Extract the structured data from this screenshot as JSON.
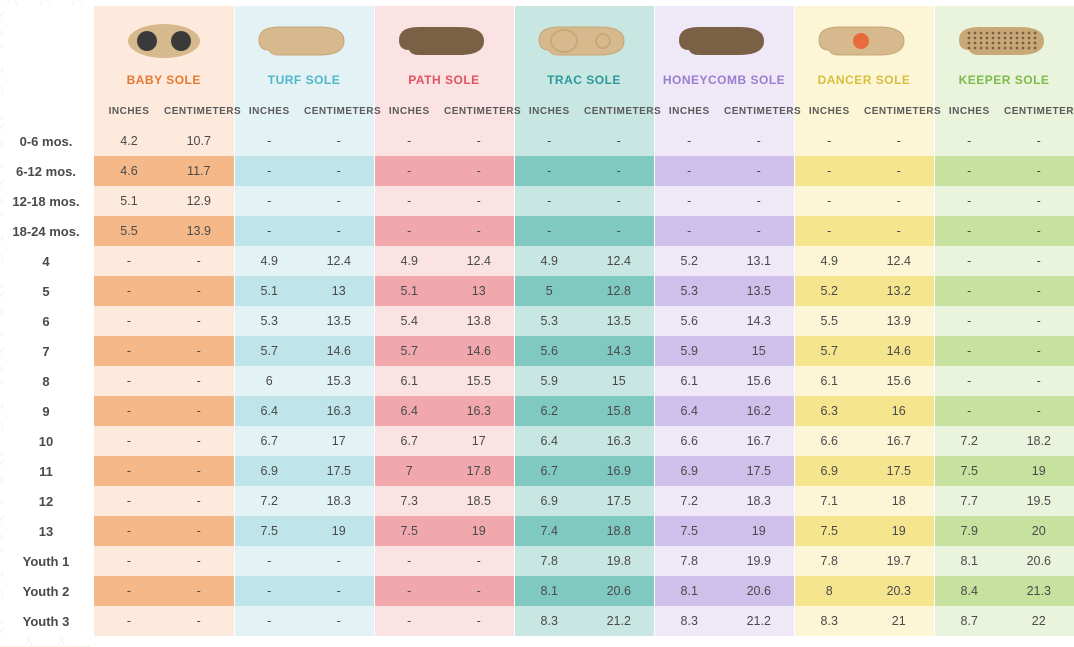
{
  "soles": [
    {
      "label": "BABY SOLE",
      "label_color": "#e67931",
      "light": "#fdeadd",
      "dark": "#f5b989",
      "icon": "baby"
    },
    {
      "label": "TURF SOLE",
      "label_color": "#4fb7c9",
      "light": "#e3f2f4",
      "dark": "#bfe4e9",
      "icon": "turf"
    },
    {
      "label": "PATH SOLE",
      "label_color": "#e15360",
      "light": "#fbe3e4",
      "dark": "#f1a8ad",
      "icon": "path"
    },
    {
      "label": "TRAC SOLE",
      "label_color": "#2c9a9a",
      "light": "#c8e6e2",
      "dark": "#7fc9c0",
      "icon": "trac"
    },
    {
      "label": "HONEYCOMB SOLE",
      "label_color": "#9a7ed1",
      "light": "#eee8f7",
      "dark": "#cfc0eb",
      "icon": "honeycomb"
    },
    {
      "label": "DANCER SOLE",
      "label_color": "#d8be3e",
      "light": "#fdf6d6",
      "dark": "#f5e58f",
      "icon": "dancer"
    },
    {
      "label": "KEEPER SOLE",
      "label_color": "#7dbb4a",
      "light": "#eaf3dc",
      "dark": "#c7e29f",
      "icon": "keeper"
    }
  ],
  "sub_headers": [
    "INCHES",
    "CENTIMETERS"
  ],
  "rows": [
    {
      "label": "0-6 mos.",
      "v": [
        [
          "4.2",
          "10.7"
        ],
        [
          "-",
          "-"
        ],
        [
          "-",
          "-"
        ],
        [
          "-",
          "-"
        ],
        [
          "-",
          "-"
        ],
        [
          "-",
          "-"
        ],
        [
          "-",
          "-"
        ]
      ]
    },
    {
      "label": "6-12 mos.",
      "v": [
        [
          "4.6",
          "11.7"
        ],
        [
          "-",
          "-"
        ],
        [
          "-",
          "-"
        ],
        [
          "-",
          "-"
        ],
        [
          "-",
          "-"
        ],
        [
          "-",
          "-"
        ],
        [
          "-",
          "-"
        ]
      ]
    },
    {
      "label": "12-18 mos.",
      "v": [
        [
          "5.1",
          "12.9"
        ],
        [
          "-",
          "-"
        ],
        [
          "-",
          "-"
        ],
        [
          "-",
          "-"
        ],
        [
          "-",
          "-"
        ],
        [
          "-",
          "-"
        ],
        [
          "-",
          "-"
        ]
      ]
    },
    {
      "label": "18-24 mos.",
      "v": [
        [
          "5.5",
          "13.9"
        ],
        [
          "-",
          "-"
        ],
        [
          "-",
          "-"
        ],
        [
          "-",
          "-"
        ],
        [
          "-",
          "-"
        ],
        [
          "-",
          "-"
        ],
        [
          "-",
          "-"
        ]
      ]
    },
    {
      "label": "4",
      "v": [
        [
          "-",
          "-"
        ],
        [
          "4.9",
          "12.4"
        ],
        [
          "4.9",
          "12.4"
        ],
        [
          "4.9",
          "12.4"
        ],
        [
          "5.2",
          "13.1"
        ],
        [
          "4.9",
          "12.4"
        ],
        [
          "-",
          "-"
        ]
      ]
    },
    {
      "label": "5",
      "v": [
        [
          "-",
          "-"
        ],
        [
          "5.1",
          "13"
        ],
        [
          "5.1",
          "13"
        ],
        [
          "5",
          "12.8"
        ],
        [
          "5.3",
          "13.5"
        ],
        [
          "5.2",
          "13.2"
        ],
        [
          "-",
          "-"
        ]
      ]
    },
    {
      "label": "6",
      "v": [
        [
          "-",
          "-"
        ],
        [
          "5.3",
          "13.5"
        ],
        [
          "5.4",
          "13.8"
        ],
        [
          "5.3",
          "13.5"
        ],
        [
          "5.6",
          "14.3"
        ],
        [
          "5.5",
          "13.9"
        ],
        [
          "-",
          "-"
        ]
      ]
    },
    {
      "label": "7",
      "v": [
        [
          "-",
          "-"
        ],
        [
          "5.7",
          "14.6"
        ],
        [
          "5.7",
          "14.6"
        ],
        [
          "5.6",
          "14.3"
        ],
        [
          "5.9",
          "15"
        ],
        [
          "5.7",
          "14.6"
        ],
        [
          "-",
          "-"
        ]
      ]
    },
    {
      "label": "8",
      "v": [
        [
          "-",
          "-"
        ],
        [
          "6",
          "15.3"
        ],
        [
          "6.1",
          "15.5"
        ],
        [
          "5.9",
          "15"
        ],
        [
          "6.1",
          "15.6"
        ],
        [
          "6.1",
          "15.6"
        ],
        [
          "-",
          "-"
        ]
      ]
    },
    {
      "label": "9",
      "v": [
        [
          "-",
          "-"
        ],
        [
          "6.4",
          "16.3"
        ],
        [
          "6.4",
          "16.3"
        ],
        [
          "6.2",
          "15.8"
        ],
        [
          "6.4",
          "16.2"
        ],
        [
          "6.3",
          "16"
        ],
        [
          "-",
          "-"
        ]
      ]
    },
    {
      "label": "10",
      "v": [
        [
          "-",
          "-"
        ],
        [
          "6.7",
          "17"
        ],
        [
          "6.7",
          "17"
        ],
        [
          "6.4",
          "16.3"
        ],
        [
          "6.6",
          "16.7"
        ],
        [
          "6.6",
          "16.7"
        ],
        [
          "7.2",
          "18.2"
        ]
      ]
    },
    {
      "label": "11",
      "v": [
        [
          "-",
          "-"
        ],
        [
          "6.9",
          "17.5"
        ],
        [
          "7",
          "17.8"
        ],
        [
          "6.7",
          "16.9"
        ],
        [
          "6.9",
          "17.5"
        ],
        [
          "6.9",
          "17.5"
        ],
        [
          "7.5",
          "19"
        ]
      ]
    },
    {
      "label": "12",
      "v": [
        [
          "-",
          "-"
        ],
        [
          "7.2",
          "18.3"
        ],
        [
          "7.3",
          "18.5"
        ],
        [
          "6.9",
          "17.5"
        ],
        [
          "7.2",
          "18.3"
        ],
        [
          "7.1",
          "18"
        ],
        [
          "7.7",
          "19.5"
        ]
      ]
    },
    {
      "label": "13",
      "v": [
        [
          "-",
          "-"
        ],
        [
          "7.5",
          "19"
        ],
        [
          "7.5",
          "19"
        ],
        [
          "7.4",
          "18.8"
        ],
        [
          "7.5",
          "19"
        ],
        [
          "7.5",
          "19"
        ],
        [
          "7.9",
          "20"
        ]
      ]
    },
    {
      "label": "Youth 1",
      "v": [
        [
          "-",
          "-"
        ],
        [
          "-",
          "-"
        ],
        [
          "-",
          "-"
        ],
        [
          "7.8",
          "19.8"
        ],
        [
          "7.8",
          "19.9"
        ],
        [
          "7.8",
          "19.7"
        ],
        [
          "8.1",
          "20.6"
        ]
      ]
    },
    {
      "label": "Youth 2",
      "v": [
        [
          "-",
          "-"
        ],
        [
          "-",
          "-"
        ],
        [
          "-",
          "-"
        ],
        [
          "8.1",
          "20.6"
        ],
        [
          "8.1",
          "20.6"
        ],
        [
          "8",
          "20.3"
        ],
        [
          "8.4",
          "21.3"
        ]
      ]
    },
    {
      "label": "Youth 3",
      "v": [
        [
          "-",
          "-"
        ],
        [
          "-",
          "-"
        ],
        [
          "-",
          "-"
        ],
        [
          "8.3",
          "21.2"
        ],
        [
          "8.3",
          "21.2"
        ],
        [
          "8.3",
          "21"
        ],
        [
          "8.7",
          "22"
        ]
      ]
    }
  ],
  "icon_colors": {
    "tan": "#d6b98c",
    "dark_tan": "#c7a877",
    "brown": "#7a6145",
    "black_dot": "#3a3a3a",
    "white": "#ffffff",
    "orange_dot": "#e86b3e"
  }
}
